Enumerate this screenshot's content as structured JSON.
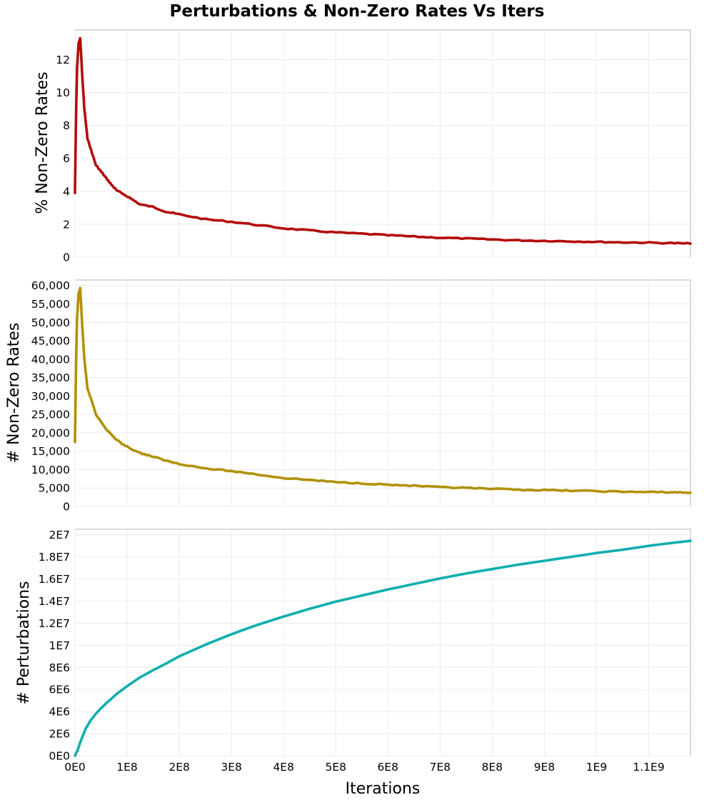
{
  "chart_data": {
    "type": "line",
    "title": "Perturbations & Non-Zero Rates Vs Iters",
    "xlabel": "Iterations",
    "xlim": [
      0,
      1180000000
    ],
    "x_ticks": [
      {
        "value": 0,
        "label": "0E0"
      },
      {
        "value": 100000000,
        "label": "1E8"
      },
      {
        "value": 200000000,
        "label": "2E8"
      },
      {
        "value": 300000000,
        "label": "3E8"
      },
      {
        "value": 400000000,
        "label": "4E8"
      },
      {
        "value": 500000000,
        "label": "5E8"
      },
      {
        "value": 600000000,
        "label": "6E8"
      },
      {
        "value": 700000000,
        "label": "7E8"
      },
      {
        "value": 800000000,
        "label": "8E8"
      },
      {
        "value": 900000000,
        "label": "9E8"
      },
      {
        "value": 1000000000,
        "label": "1E9"
      },
      {
        "value": 1100000000,
        "label": "1.1E9"
      }
    ],
    "panels": [
      {
        "id": "pct",
        "ylabel": "% Non-Zero Rates",
        "color": "#b40b0b",
        "ylim": [
          0,
          13.8
        ],
        "y_ticks": [
          {
            "value": 0,
            "label": "0"
          },
          {
            "value": 2,
            "label": "2"
          },
          {
            "value": 4,
            "label": "4"
          },
          {
            "value": 6,
            "label": "6"
          },
          {
            "value": 8,
            "label": "8"
          },
          {
            "value": 10,
            "label": "10"
          },
          {
            "value": 12,
            "label": "12"
          }
        ],
        "series": {
          "name": "% Non-Zero Rates",
          "x": [
            0,
            2000000,
            4000000,
            7000000,
            10000000,
            14000000,
            18000000,
            24000000,
            30000000,
            40000000,
            50000000,
            60000000,
            70000000,
            80000000,
            100000000,
            125000000,
            150000000,
            175000000,
            200000000,
            250000000,
            300000000,
            350000000,
            400000000,
            450000000,
            500000000,
            550000000,
            600000000,
            650000000,
            700000000,
            750000000,
            800000000,
            850000000,
            900000000,
            950000000,
            1000000000,
            1050000000,
            1100000000,
            1150000000,
            1180000000
          ],
          "y": [
            3.9,
            8.5,
            11.5,
            13.0,
            13.3,
            11.0,
            9.0,
            7.2,
            6.6,
            5.6,
            5.2,
            4.8,
            4.4,
            4.05,
            3.7,
            3.2,
            3.05,
            2.75,
            2.6,
            2.3,
            2.15,
            1.95,
            1.75,
            1.62,
            1.5,
            1.42,
            1.33,
            1.25,
            1.18,
            1.13,
            1.07,
            1.02,
            0.99,
            0.96,
            0.93,
            0.9,
            0.88,
            0.85,
            0.82
          ]
        }
      },
      {
        "id": "count",
        "ylabel": "# Non-Zero Rates",
        "color": "#b19107",
        "ylim": [
          0,
          61500
        ],
        "y_ticks": [
          {
            "value": 0,
            "label": "0"
          },
          {
            "value": 5000,
            "label": "5,000"
          },
          {
            "value": 10000,
            "label": "10,000"
          },
          {
            "value": 15000,
            "label": "15,000"
          },
          {
            "value": 20000,
            "label": "20,000"
          },
          {
            "value": 25000,
            "label": "25,000"
          },
          {
            "value": 30000,
            "label": "30,000"
          },
          {
            "value": 35000,
            "label": "35,000"
          },
          {
            "value": 40000,
            "label": "40,000"
          },
          {
            "value": 45000,
            "label": "45,000"
          },
          {
            "value": 50000,
            "label": "50,000"
          },
          {
            "value": 55000,
            "label": "55,000"
          },
          {
            "value": 60000,
            "label": "60,000"
          }
        ],
        "series": {
          "name": "# Non-Zero Rates",
          "x": [
            0,
            2000000,
            4000000,
            7000000,
            10000000,
            14000000,
            18000000,
            24000000,
            30000000,
            40000000,
            50000000,
            60000000,
            70000000,
            80000000,
            100000000,
            125000000,
            150000000,
            175000000,
            200000000,
            250000000,
            300000000,
            350000000,
            400000000,
            450000000,
            500000000,
            550000000,
            600000000,
            650000000,
            700000000,
            750000000,
            800000000,
            850000000,
            900000000,
            950000000,
            1000000000,
            1050000000,
            1100000000,
            1150000000,
            1180000000
          ],
          "y": [
            17500,
            38000,
            51000,
            58000,
            59200,
            49000,
            40000,
            32000,
            29500,
            25000,
            23000,
            21000,
            19500,
            18000,
            16200,
            14500,
            13500,
            12400,
            11600,
            10300,
            9600,
            8700,
            7700,
            7200,
            6600,
            6300,
            5900,
            5600,
            5200,
            5000,
            4750,
            4550,
            4400,
            4300,
            4150,
            4000,
            3900,
            3850,
            3700
          ]
        }
      },
      {
        "id": "pert",
        "ylabel": "# Perturbations",
        "color": "#0daeae",
        "ylim": [
          0,
          20500000
        ],
        "y_ticks": [
          {
            "value": 0,
            "label": "0E0"
          },
          {
            "value": 2000000,
            "label": "2E6"
          },
          {
            "value": 4000000,
            "label": "4E6"
          },
          {
            "value": 6000000,
            "label": "6E6"
          },
          {
            "value": 8000000,
            "label": "8E6"
          },
          {
            "value": 10000000,
            "label": "1E7"
          },
          {
            "value": 12000000,
            "label": "1.2E7"
          },
          {
            "value": 14000000,
            "label": "1.4E7"
          },
          {
            "value": 16000000,
            "label": "1.6E7"
          },
          {
            "value": 18000000,
            "label": "1.8E7"
          },
          {
            "value": 20000000,
            "label": "2E7"
          }
        ],
        "series": {
          "name": "# Perturbations",
          "x": [
            0,
            5000000,
            10000000,
            20000000,
            30000000,
            40000000,
            50000000,
            60000000,
            80000000,
            100000000,
            125000000,
            150000000,
            175000000,
            200000000,
            250000000,
            300000000,
            350000000,
            400000000,
            450000000,
            500000000,
            550000000,
            600000000,
            650000000,
            700000000,
            750000000,
            800000000,
            850000000,
            900000000,
            950000000,
            1000000000,
            1050000000,
            1100000000,
            1150000000,
            1180000000
          ],
          "y": [
            0,
            500000,
            1200000,
            2400000,
            3200000,
            3800000,
            4300000,
            4750000,
            5600000,
            6300000,
            7100000,
            7750000,
            8350000,
            9000000,
            10050000,
            11000000,
            11850000,
            12600000,
            13300000,
            13950000,
            14500000,
            15050000,
            15550000,
            16050000,
            16500000,
            16900000,
            17300000,
            17650000,
            18000000,
            18350000,
            18650000,
            19000000,
            19300000,
            19450000
          ]
        }
      }
    ]
  }
}
